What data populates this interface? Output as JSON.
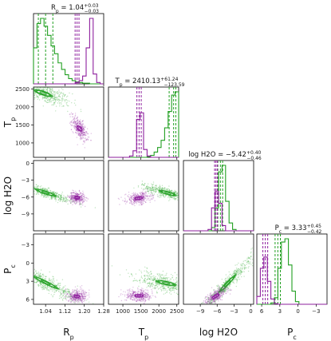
{
  "chart_data": {
    "type": "corner",
    "colors": {
      "green": "#22a022",
      "purple": "#8e1f9e",
      "contour_fill": "#ffffff"
    },
    "parameters": [
      {
        "key": "Rp",
        "label": "R",
        "label_sub": "p",
        "title_base": "R",
        "title_sub": "p",
        "title_value": "= 1.04",
        "title_plus": "+0.03",
        "title_minus": "−0.03",
        "range": [
          0.99,
          1.28
        ],
        "ticks": [
          1.04,
          1.12,
          1.2,
          1.28
        ],
        "tick_labels": [
          "1.04",
          "1.12",
          "1.20",
          "1.28"
        ],
        "green": {
          "median": 1.04,
          "q16": 1.01,
          "q84": 1.07,
          "hist": [
            0.55,
            0.92,
            1.0,
            0.88,
            0.74,
            0.58,
            0.46,
            0.32,
            0.22,
            0.14,
            0.08,
            0.05,
            0.03,
            0.02,
            0.01,
            0.01,
            0.0,
            0.0,
            0.0,
            0.0
          ]
        },
        "purple": {
          "median": 1.17,
          "q16": 1.162,
          "q84": 1.178,
          "hist": [
            0,
            0,
            0,
            0,
            0,
            0,
            0,
            0,
            0,
            0,
            0,
            0,
            0.02,
            0.05,
            0.12,
            0.55,
            1.0,
            0.15,
            0.02,
            0
          ]
        }
      },
      {
        "key": "Tp",
        "label": "T",
        "label_sub": "p",
        "title_base": "T",
        "title_sub": "p",
        "title_value": "= 2410.13",
        "title_plus": "+61.24",
        "title_minus": "−123.59",
        "range": [
          600,
          2550
        ],
        "ticks": [
          1000,
          1500,
          2000,
          2500
        ],
        "tick_labels": [
          "1000",
          "1500",
          "2000",
          "2500"
        ],
        "green": {
          "median": 2410,
          "q16": 2286,
          "q84": 2471,
          "hist": [
            0,
            0,
            0,
            0,
            0,
            0,
            0,
            0,
            0,
            0,
            0,
            0.01,
            0.03,
            0.08,
            0.15,
            0.26,
            0.45,
            0.7,
            0.95,
            1.0
          ]
        },
        "purple": {
          "median": 1450,
          "q16": 1390,
          "q84": 1510,
          "hist": [
            0,
            0,
            0,
            0,
            0,
            0,
            0.02,
            0.1,
            0.58,
            0.68,
            0.12,
            0.02,
            0,
            0,
            0,
            0,
            0,
            0,
            0,
            0
          ]
        }
      },
      {
        "key": "logH2O",
        "label": "log H2O",
        "label_sub": "",
        "title_base": "log H2O",
        "title_sub": "",
        "title_value": "= −5.42",
        "title_plus": "+0.40",
        "title_minus": "−0.46",
        "range": [
          -12,
          0.5
        ],
        "ticks": [
          -9,
          -6,
          -3,
          0
        ],
        "tick_labels": [
          "−9",
          "−6",
          "−3",
          "0"
        ],
        "green": {
          "median": -5.42,
          "q16": -5.88,
          "q84": -5.02,
          "hist": [
            0,
            0,
            0,
            0,
            0,
            0,
            0,
            0,
            0.05,
            0.35,
            0.9,
            1.0,
            0.45,
            0.12,
            0.02,
            0,
            0,
            0,
            0,
            0
          ]
        },
        "purple": {
          "median": -6.2,
          "q16": -6.45,
          "q84": -5.95,
          "hist": [
            0,
            0,
            0,
            0,
            0,
            0,
            0,
            0.02,
            0.35,
            0.6,
            0.42,
            0.08,
            0,
            0,
            0,
            0,
            0,
            0,
            0,
            0
          ]
        }
      },
      {
        "key": "Pc",
        "label": "P",
        "label_sub": "c",
        "title_base": "P",
        "title_sub": "c",
        "title_value": "= 3.33",
        "title_plus": "+0.45",
        "title_minus": "−0.42",
        "range": [
          6.8,
          -4.8
        ],
        "ticks": [
          6,
          3,
          0,
          -3
        ],
        "tick_labels": [
          "6",
          "3",
          "0",
          "−3"
        ],
        "green": {
          "median": 3.33,
          "q16": 2.91,
          "q84": 3.78,
          "hist": [
            0,
            0,
            0,
            0,
            0.02,
            0.1,
            0.55,
            0.95,
            1.0,
            0.6,
            0.2,
            0.04,
            0,
            0,
            0,
            0,
            0,
            0,
            0,
            0
          ]
        },
        "purple": {
          "median": 5.4,
          "q16": 5.0,
          "q84": 5.8,
          "hist": [
            0.12,
            0.55,
            0.72,
            0.35,
            0.08,
            0.01,
            0,
            0,
            0,
            0,
            0,
            0,
            0,
            0,
            0,
            0,
            0,
            0,
            0,
            0
          ]
        }
      }
    ],
    "pairs": [
      {
        "row": 1,
        "col": 0,
        "green": {
          "center": [
            1.03,
            2380
          ],
          "slope": -2300,
          "spread": [
            0.035,
            130
          ]
        },
        "purple": {
          "center": [
            1.18,
            1400
          ],
          "slope": -6500,
          "spread": [
            0.01,
            130
          ]
        }
      },
      {
        "row": 2,
        "col": 0,
        "green": {
          "center": [
            1.04,
            -5.2
          ],
          "slope": -14,
          "spread": [
            0.04,
            0.4
          ]
        },
        "purple": {
          "center": [
            1.17,
            -6.1
          ],
          "slope": -4,
          "spread": [
            0.01,
            0.5
          ]
        }
      },
      {
        "row": 2,
        "col": 1,
        "green": {
          "center": [
            2250,
            -5.3
          ],
          "slope": -0.0018,
          "spread": [
            220,
            0.45
          ]
        },
        "purple": {
          "center": [
            1440,
            -6.2
          ],
          "slope": 0.0005,
          "spread": [
            110,
            0.5
          ]
        }
      },
      {
        "row": 3,
        "col": 0,
        "green": {
          "center": [
            1.04,
            3.2
          ],
          "slope": 20,
          "spread": [
            0.05,
            0.6
          ]
        },
        "purple": {
          "center": [
            1.17,
            5.5
          ],
          "slope": 0,
          "spread": [
            0.012,
            0.5
          ]
        }
      },
      {
        "row": 3,
        "col": 1,
        "green": {
          "center": [
            2200,
            3.3
          ],
          "slope": 0.0012,
          "spread": [
            260,
            0.7
          ]
        },
        "purple": {
          "center": [
            1450,
            5.4
          ],
          "slope": 0,
          "spread": [
            120,
            0.5
          ]
        }
      },
      {
        "row": 3,
        "col": 2,
        "green": {
          "center": [
            -4.2,
            3.4
          ],
          "slope": -0.95,
          "spread": [
            1.4,
            0.6
          ]
        },
        "purple": {
          "center": [
            -6.3,
            5.5
          ],
          "slope": -0.5,
          "spread": [
            0.6,
            0.5
          ]
        }
      }
    ]
  }
}
